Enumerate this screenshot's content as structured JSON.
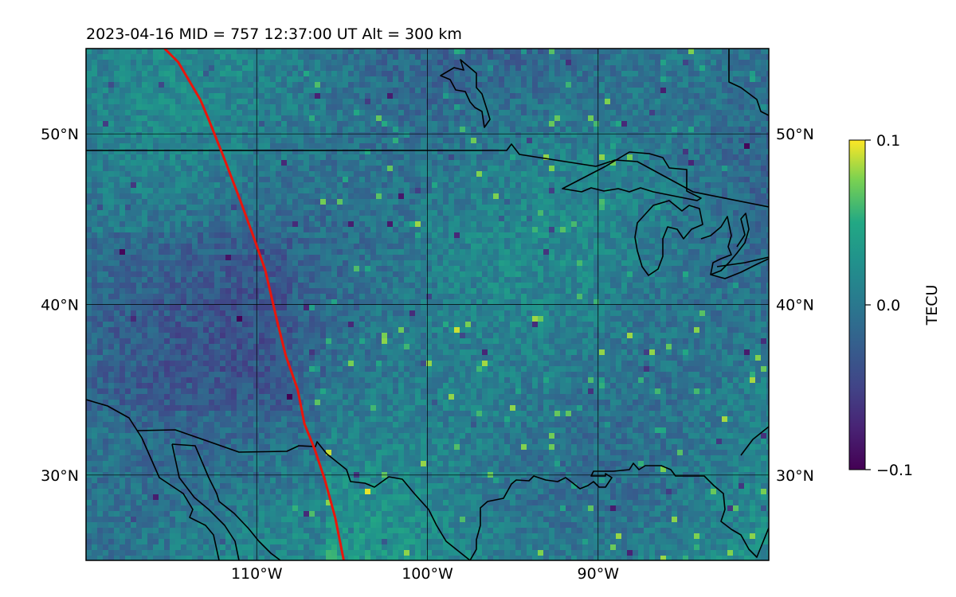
{
  "map": {
    "title": "2023-04-16  MID = 757    12:37:00  UT  Alt = 300 km",
    "lon_range": [
      -120,
      -80
    ],
    "lat_range": [
      25,
      55
    ],
    "lon_ticks": [
      {
        "value": -110,
        "label": "110°W"
      },
      {
        "value": -100,
        "label": "100°W"
      },
      {
        "value": -90,
        "label": "90°W"
      }
    ],
    "lat_ticks": [
      {
        "value": 50,
        "label": "50°N"
      },
      {
        "value": 40,
        "label": "40°N"
      },
      {
        "value": 30,
        "label": "30°N"
      }
    ],
    "colorbar": {
      "label": "TECU",
      "range": [
        -0.1,
        0.1
      ],
      "ticks": [
        {
          "value": 0.1,
          "label": "0.1"
        },
        {
          "value": 0.0,
          "label": "0.0"
        },
        {
          "value": -0.1,
          "label": "−0.1"
        }
      ],
      "colormap": "viridis"
    },
    "track": {
      "color": "#e8160c",
      "points": [
        [
          -115.4,
          55
        ],
        [
          -114.6,
          54.2
        ],
        [
          -113.3,
          52.0
        ],
        [
          -112.8,
          50.8
        ],
        [
          -112.0,
          48.8
        ],
        [
          -111.0,
          46.2
        ],
        [
          -110.2,
          44.0
        ],
        [
          -109.5,
          42.0
        ],
        [
          -108.8,
          39.0
        ],
        [
          -108.3,
          37.0
        ],
        [
          -107.6,
          35.0
        ],
        [
          -107.2,
          33.0
        ],
        [
          -106.6,
          31.5
        ],
        [
          -106.0,
          29.7
        ],
        [
          -105.4,
          27.5
        ],
        [
          -104.9,
          25.0
        ]
      ]
    },
    "grid_color": "#000000",
    "coastline_color": "#000000"
  }
}
